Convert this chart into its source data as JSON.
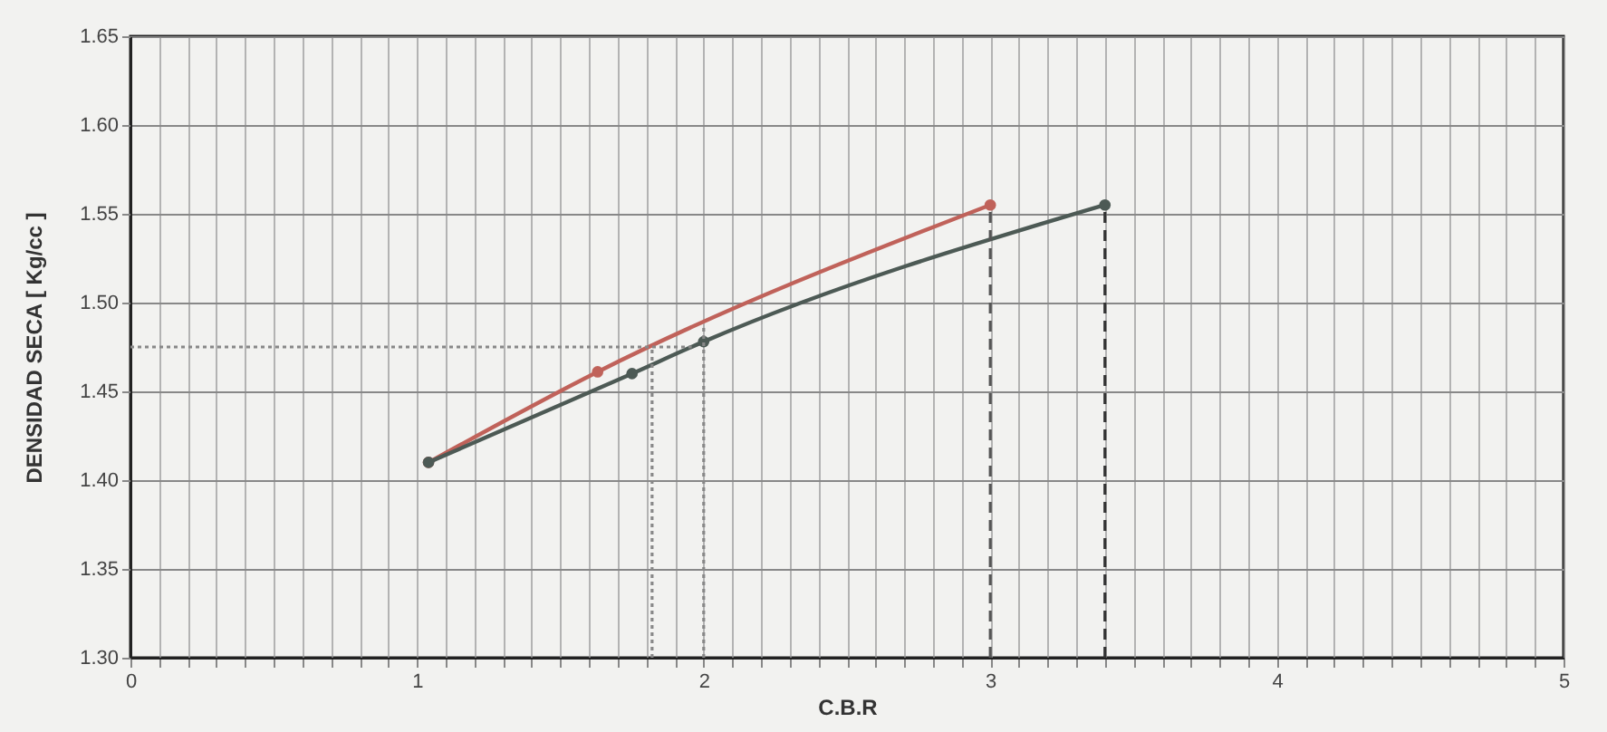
{
  "chart_data": {
    "type": "line",
    "xlabel": "C.B.R",
    "ylabel": "DENSIDAD   SECA   [ Kg/cc ]",
    "series": [
      {
        "color": "#c0625a",
        "x": [
          1.04,
          1.63,
          3.0
        ],
        "values": [
          1.41,
          1.461,
          1.555
        ]
      },
      {
        "color": "#4d5a55",
        "x": [
          1.04,
          1.75,
          2.0,
          3.4
        ],
        "values": [
          1.41,
          1.46,
          1.478,
          1.555
        ]
      }
    ],
    "xlim": [
      0,
      5
    ],
    "xticks": [
      0,
      {
        "value": 0.1,
        "label": null
      },
      {
        "value": 0.2,
        "label": null
      },
      {
        "value": 0.3,
        "label": null
      },
      {
        "value": 0.4,
        "label": null
      },
      {
        "value": 0.5,
        "label": null
      },
      {
        "value": 0.6,
        "label": null
      },
      {
        "value": 0.7,
        "label": null
      },
      {
        "value": 0.8,
        "label": null
      },
      {
        "value": 0.9,
        "label": null
      },
      1,
      {
        "value": 1.1,
        "label": null
      },
      {
        "value": 1.2,
        "label": null
      },
      {
        "value": 1.3,
        "label": null
      },
      {
        "value": 1.4,
        "label": null
      },
      {
        "value": 1.5,
        "label": null
      },
      {
        "value": 1.6,
        "label": null
      },
      {
        "value": 1.7,
        "label": null
      },
      {
        "value": 1.8,
        "label": null
      },
      {
        "value": 1.9,
        "label": null
      },
      2,
      {
        "value": 2.1,
        "label": null
      },
      {
        "value": 2.2,
        "label": null
      },
      {
        "value": 2.3,
        "label": null
      },
      {
        "value": 2.4,
        "label": null
      },
      {
        "value": 2.5,
        "label": null
      },
      {
        "value": 2.6,
        "label": null
      },
      {
        "value": 2.7,
        "label": null
      },
      {
        "value": 2.8,
        "label": null
      },
      {
        "value": 2.9,
        "label": null
      },
      3,
      {
        "value": 3.1,
        "label": null
      },
      {
        "value": 3.2,
        "label": null
      },
      {
        "value": 3.3,
        "label": null
      },
      {
        "value": 3.4,
        "label": null
      },
      {
        "value": 3.5,
        "label": null
      },
      {
        "value": 3.6,
        "label": null
      },
      {
        "value": 3.7,
        "label": null
      },
      {
        "value": 3.8,
        "label": null
      },
      {
        "value": 3.9,
        "label": null
      },
      4,
      {
        "value": 4.1,
        "label": null
      },
      {
        "value": 4.2,
        "label": null
      },
      {
        "value": 4.3,
        "label": null
      },
      {
        "value": 4.4,
        "label": null
      },
      {
        "value": 4.5,
        "label": null
      },
      {
        "value": 4.6,
        "label": null
      },
      {
        "value": 4.7,
        "label": null
      },
      {
        "value": 4.8,
        "label": null
      },
      {
        "value": 4.9,
        "label": null
      },
      5
    ],
    "ylim": [
      1.3,
      1.65
    ],
    "yticks": [
      {
        "value": 1.3,
        "label": "1.30"
      },
      1.35,
      {
        "value": 1.4,
        "label": "1.40"
      },
      1.45,
      {
        "value": 1.5,
        "label": "1.50"
      },
      1.55,
      {
        "value": 1.6,
        "label": "1.60"
      },
      1.65
    ],
    "ref_lines": [
      {
        "axis": "x",
        "value": 3.0,
        "color": "#555555",
        "line_style": "dashed"
      },
      {
        "axis": "x",
        "value": 3.4,
        "color": "#333333",
        "line_style": "dashed"
      },
      {
        "axis": "x",
        "value": 1.82,
        "color": "#888888",
        "line_style": "dotted"
      },
      {
        "axis": "x",
        "value": 2.0,
        "color": "#888888",
        "line_style": "dotted"
      },
      {
        "axis": "y",
        "value": 1.475,
        "color": "#888888",
        "line_style": "dotted"
      }
    ],
    "grid": true,
    "marker": "circle",
    "line_style": "solid"
  }
}
